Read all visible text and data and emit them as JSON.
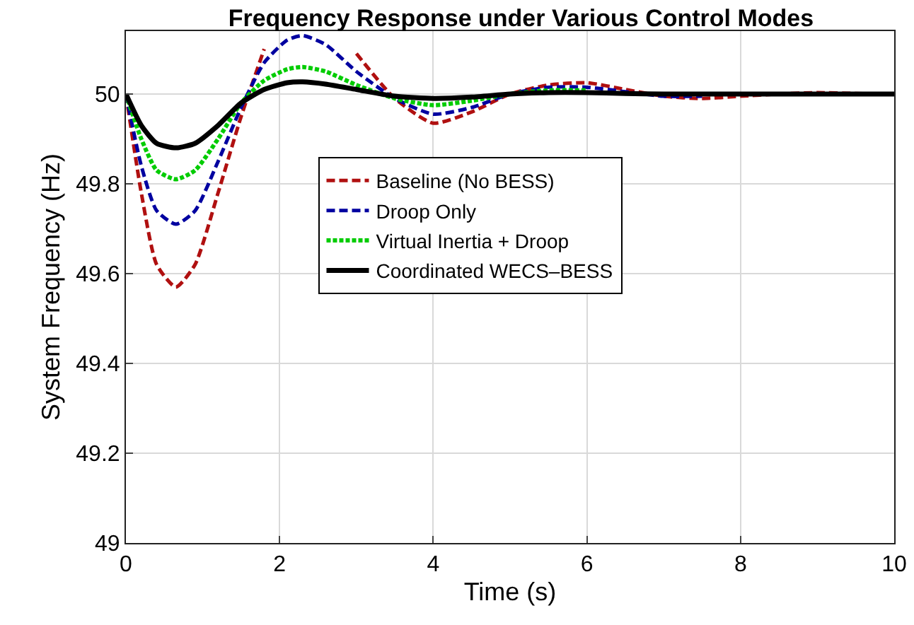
{
  "chart_data": {
    "type": "line",
    "title": "Frequency Response under Various Control Modes",
    "xlabel": "Time (s)",
    "ylabel": "System Frequency (Hz)",
    "x": [
      0,
      0.2,
      0.4,
      0.65,
      0.9,
      1.2,
      1.5,
      1.8,
      2.1,
      2.3,
      2.6,
      3.0,
      3.5,
      4.0,
      4.5,
      5.0,
      5.5,
      6.0,
      6.5,
      7.0,
      7.5,
      8.0,
      8.5,
      9.0,
      9.5,
      10
    ],
    "series": [
      {
        "name": "Baseline (No BESS)",
        "color": "#b01010",
        "line_style": "dashed",
        "values": [
          50,
          49.78,
          49.62,
          49.57,
          49.62,
          49.78,
          49.95,
          50.1,
          null,
          null,
          null,
          50.09,
          49.99,
          49.935,
          49.96,
          50.0,
          50.02,
          50.025,
          50.01,
          49.995,
          49.99,
          49.995,
          50.0,
          50.003,
          50.001,
          50
        ]
      },
      {
        "name": "Droop Only",
        "color": "#0000a0",
        "line_style": "dashed",
        "values": [
          50,
          49.84,
          49.74,
          49.71,
          49.74,
          49.85,
          49.97,
          50.07,
          50.12,
          50.13,
          50.11,
          50.05,
          49.99,
          49.955,
          49.97,
          50.0,
          50.015,
          50.015,
          50.005,
          49.995,
          49.995,
          null,
          null,
          null,
          null,
          null
        ]
      },
      {
        "name": "Virtual Inertia + Droop",
        "color": "#00cc00",
        "line_style": "dotted",
        "values": [
          50,
          49.9,
          49.83,
          49.81,
          49.83,
          49.9,
          49.98,
          50.03,
          50.055,
          50.06,
          50.05,
          50.02,
          49.99,
          49.975,
          49.985,
          50.0,
          50.008,
          50.008,
          null,
          null,
          null,
          null,
          null,
          null,
          null,
          null
        ]
      },
      {
        "name": "Coordinated WECS–BESS",
        "color": "#000000",
        "line_style": "solid",
        "values": [
          50,
          49.93,
          49.89,
          49.88,
          49.89,
          49.93,
          49.98,
          50.01,
          50.025,
          50.027,
          50.022,
          50.01,
          49.995,
          49.99,
          49.993,
          50.0,
          50.003,
          50.003,
          50.001,
          50.0,
          50.0,
          50.0,
          50.0,
          50.0,
          50.0,
          50
        ]
      }
    ],
    "xlim": [
      0,
      10
    ],
    "xticks": [
      0,
      2,
      4,
      6,
      8,
      10
    ],
    "ylim": [
      49,
      50.14
    ],
    "yticks": [
      49,
      49.2,
      49.4,
      49.6,
      49.8,
      50
    ],
    "grid": true,
    "legend": "center",
    "marker": "none"
  }
}
